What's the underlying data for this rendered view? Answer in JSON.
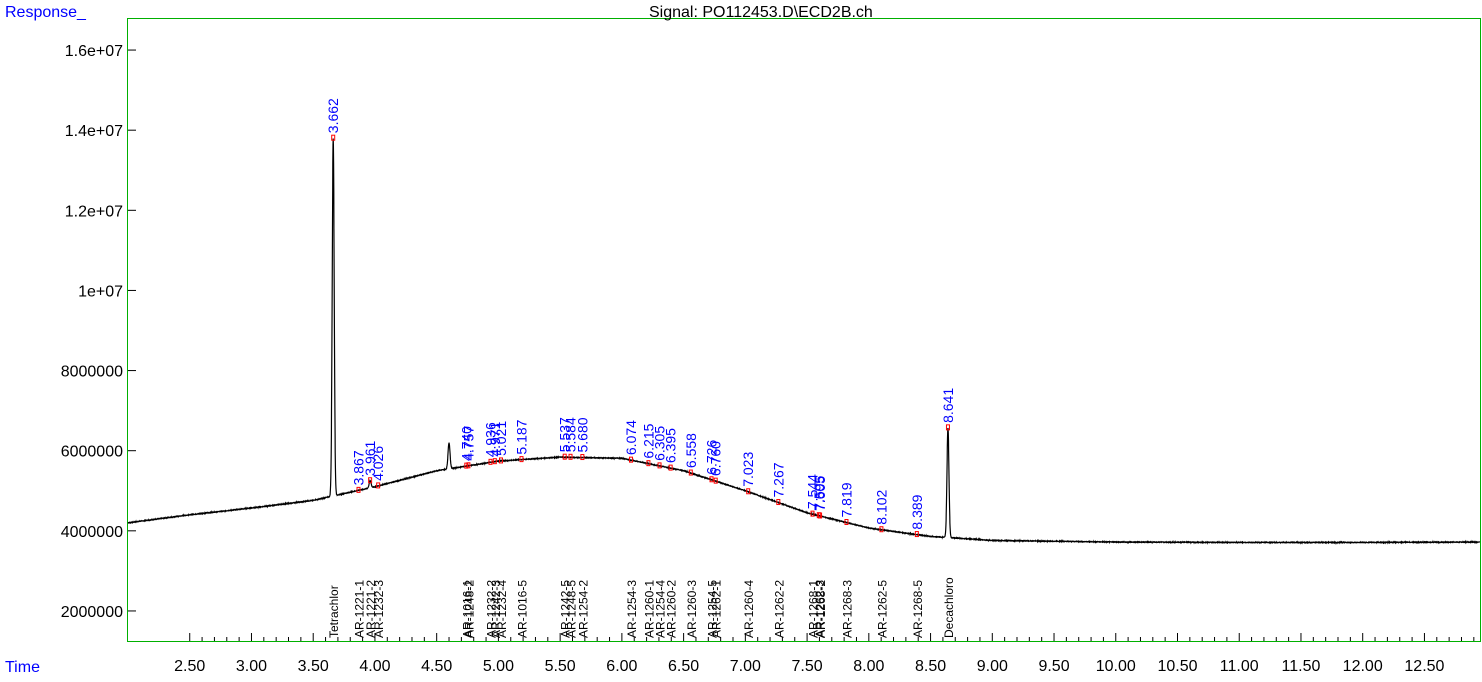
{
  "chart_data": {
    "type": "line",
    "title": "Signal: PO112453.D\\ECD2B.ch",
    "ylabel": "Response_",
    "xlabel": "Time",
    "xlim": [
      2.0,
      12.95
    ],
    "ylim": [
      1250000,
      16800000
    ],
    "x_ticks": [
      "2.50",
      "3.00",
      "3.50",
      "4.00",
      "4.50",
      "5.00",
      "5.50",
      "6.00",
      "6.50",
      "7.00",
      "7.50",
      "8.00",
      "8.50",
      "9.00",
      "9.50",
      "10.00",
      "10.50",
      "11.00",
      "11.50",
      "12.00",
      "12.50"
    ],
    "y_ticks": [
      "2000000",
      "4000000",
      "6000000",
      "8000000",
      "1e+07",
      "1.2e+07",
      "1.4e+07",
      "1.6e+07"
    ],
    "colors": {
      "trace": "#000000",
      "rt_label": "#0000ff",
      "axis_label": "#0000ff",
      "frame": "#00b000",
      "marker": "#ff0000"
    },
    "baseline": [
      [
        2.0,
        4200000
      ],
      [
        2.5,
        4400000
      ],
      [
        3.0,
        4570000
      ],
      [
        3.5,
        4760000
      ],
      [
        4.0,
        5100000
      ],
      [
        4.5,
        5500000
      ],
      [
        5.0,
        5740000
      ],
      [
        5.5,
        5840000
      ],
      [
        6.0,
        5810000
      ],
      [
        6.5,
        5500000
      ],
      [
        7.0,
        5000000
      ],
      [
        7.5,
        4450000
      ],
      [
        8.0,
        4070000
      ],
      [
        8.5,
        3860000
      ],
      [
        9.0,
        3760000
      ],
      [
        10.0,
        3720000
      ],
      [
        11.0,
        3710000
      ],
      [
        12.0,
        3710000
      ],
      [
        12.95,
        3720000
      ]
    ],
    "peaks": [
      {
        "rt": 3.662,
        "height": 13800000
      },
      {
        "rt": 4.6,
        "height": 6200000
      },
      {
        "rt": 8.641,
        "height": 6570000
      },
      {
        "rt": 3.961,
        "height": 5250000
      }
    ],
    "rt_labels": [
      "3.662",
      "3.867",
      "3.961",
      "4.026",
      "4.740",
      "4.757",
      "4.936",
      "4.971",
      "5.021",
      "5.187",
      "5.537",
      "5.584",
      "5.680",
      "6.074",
      "6.215",
      "6.305",
      "6.395",
      "6.558",
      "6.726",
      "6.760",
      "7.023",
      "7.267",
      "7.544",
      "7.595",
      "7.605",
      "7.819",
      "8.102",
      "8.389",
      "8.641"
    ],
    "compound_labels": [
      {
        "x": 3.662,
        "text": "Tetrachlor"
      },
      {
        "x": 3.867,
        "text": "AR-1221-1"
      },
      {
        "x": 3.961,
        "text": "AR-1221-2"
      },
      {
        "x": 4.026,
        "text": "AR-1232-3"
      },
      {
        "x": 4.74,
        "text": "AR-1016-1"
      },
      {
        "x": 4.757,
        "text": "AR-1248-2"
      },
      {
        "x": 4.936,
        "text": "AR-1232-2"
      },
      {
        "x": 4.971,
        "text": "AR-1242-3"
      },
      {
        "x": 5.021,
        "text": "AR-1232-4"
      },
      {
        "x": 5.187,
        "text": "AR-1016-5"
      },
      {
        "x": 5.537,
        "text": "AR-1242-5"
      },
      {
        "x": 5.584,
        "text": "AR-1248-5"
      },
      {
        "x": 5.68,
        "text": "AR-1254-2"
      },
      {
        "x": 6.074,
        "text": "AR-1254-3"
      },
      {
        "x": 6.215,
        "text": "AR-1260-1"
      },
      {
        "x": 6.305,
        "text": "AR-1254-4"
      },
      {
        "x": 6.395,
        "text": "AR-1260-2"
      },
      {
        "x": 6.558,
        "text": "AR-1260-3"
      },
      {
        "x": 6.726,
        "text": "AR-1254-5"
      },
      {
        "x": 6.76,
        "text": "AR-1262-1"
      },
      {
        "x": 7.023,
        "text": "AR-1260-4"
      },
      {
        "x": 7.267,
        "text": "AR-1262-2"
      },
      {
        "x": 7.544,
        "text": "AR-1268-1"
      },
      {
        "x": 7.595,
        "text": "AR-1262-3"
      },
      {
        "x": 7.605,
        "text": "AR-1268-2"
      },
      {
        "x": 7.819,
        "text": "AR-1268-3"
      },
      {
        "x": 8.102,
        "text": "AR-1262-5"
      },
      {
        "x": 8.389,
        "text": "AR-1268-5"
      },
      {
        "x": 8.641,
        "text": "Decachloro"
      }
    ]
  }
}
